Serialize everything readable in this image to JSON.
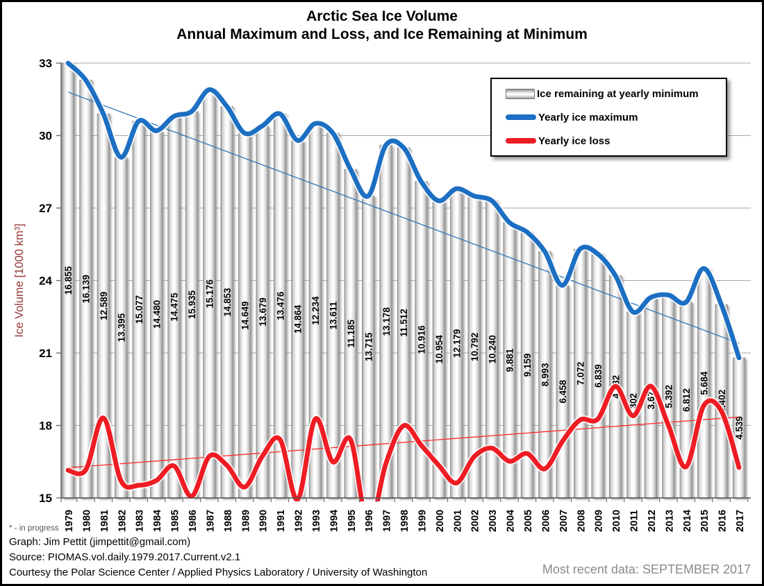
{
  "title": {
    "line1": "Arctic Sea Ice Volume",
    "line2": "Annual Maximum and Loss, and Ice Remaining at Minimum"
  },
  "chart_data": {
    "type": "bar+line combo",
    "title": "Arctic Sea Ice Volume — Annual Maximum and Loss, and Ice Remaining at Minimum",
    "ylabel": "Ice Volume [1000 km³]",
    "xlabel": "",
    "ylim": [
      15,
      33
    ],
    "yticks": [
      15,
      18,
      21,
      24,
      27,
      30,
      33
    ],
    "grid": true,
    "legend_position": "top-right",
    "bar_note": "bars are drawn from the axis (15) up to the yearly maximum; the label on each bar is the ice remaining at yearly minimum",
    "years": [
      1979,
      1980,
      1981,
      1982,
      1983,
      1984,
      1985,
      1986,
      1987,
      1988,
      1989,
      1990,
      1991,
      1992,
      1993,
      1994,
      1995,
      1996,
      1997,
      1998,
      1999,
      2000,
      2001,
      2002,
      2003,
      2004,
      2005,
      2006,
      2007,
      2008,
      2009,
      2010,
      2011,
      2012,
      2013,
      2014,
      2015,
      2016,
      2017
    ],
    "series": [
      {
        "name": "Ice remaining at yearly minimum",
        "type": "bar",
        "color": "#d9d9d9",
        "values": [
          16.855,
          16.139,
          12.589,
          13.395,
          15.077,
          14.48,
          14.475,
          15.935,
          15.176,
          14.853,
          14.649,
          13.679,
          13.476,
          14.864,
          12.234,
          13.611,
          11.185,
          13.715,
          13.178,
          11.512,
          10.916,
          10.954,
          12.179,
          10.792,
          10.24,
          9.881,
          9.159,
          8.993,
          6.458,
          7.072,
          6.839,
          4.582,
          4.302,
          3.673,
          5.392,
          6.812,
          5.684,
          4.402,
          4.539
        ]
      },
      {
        "name": "Yearly ice maximum",
        "type": "line",
        "color": "#1c6fc2",
        "values": [
          33.0,
          32.3,
          30.9,
          29.1,
          30.6,
          30.2,
          30.8,
          31.0,
          31.9,
          31.2,
          30.1,
          30.4,
          30.9,
          29.8,
          30.5,
          30.1,
          28.6,
          27.5,
          29.6,
          29.5,
          28.1,
          27.3,
          27.8,
          27.5,
          27.3,
          26.4,
          26.0,
          25.2,
          23.8,
          25.3,
          25.1,
          24.2,
          22.7,
          23.3,
          23.4,
          23.1,
          24.5,
          23.0,
          20.8
        ]
      },
      {
        "name": "Yearly ice loss",
        "type": "line",
        "color": "#ee1c23",
        "values": [
          16.145,
          16.161,
          18.311,
          15.705,
          15.523,
          15.72,
          16.325,
          15.065,
          16.724,
          16.347,
          15.451,
          16.721,
          17.424,
          14.936,
          18.266,
          16.489,
          17.415,
          13.785,
          16.422,
          17.988,
          17.184,
          16.346,
          15.621,
          16.708,
          17.06,
          16.519,
          16.841,
          16.207,
          17.342,
          18.228,
          18.261,
          19.618,
          18.398,
          19.627,
          18.008,
          16.288,
          18.816,
          18.598,
          16.261
        ]
      }
    ],
    "trendlines": [
      {
        "name": "maximum trend",
        "color": "#2e75b6",
        "start": 31.8,
        "end": 21.4
      },
      {
        "name": "loss trend",
        "color": "#ff2a2a",
        "start": 16.25,
        "end": 18.35
      }
    ]
  },
  "legend": {
    "items": [
      {
        "label": "Ice remaining at yearly minimum",
        "swatch": "gray-bar"
      },
      {
        "label": "Yearly ice maximum",
        "swatch": "blue-line"
      },
      {
        "label": "Yearly ice loss",
        "swatch": "red-line"
      }
    ]
  },
  "footer": {
    "note": "* - in progress",
    "graph": "Graph: Jim Pettit (jimpettit@gmail.com)",
    "source": "Source: PIOMAS.vol.daily.1979.2017.Current.v2.1",
    "courtesy": "Courtesy the Polar Science Center / Applied Physics Laboratory / University of Washington",
    "most_recent": "Most recent data: SEPTEMBER 2017"
  }
}
